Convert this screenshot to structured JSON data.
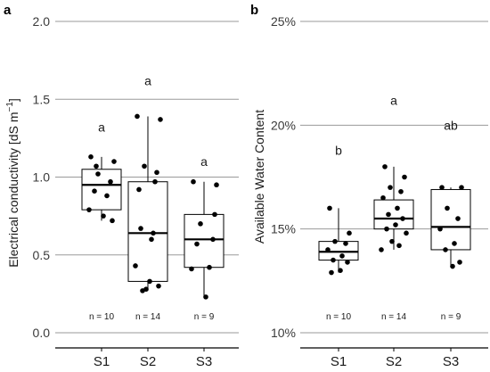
{
  "chart_data": [
    {
      "type": "box",
      "panel": "a",
      "title": "",
      "ylabel": "Electrical conductivity [dS m",
      "ylabel_sup": "−1",
      "ylabel_end": "]",
      "ylim": [
        0.0,
        2.0
      ],
      "yticks": [
        0.0,
        0.5,
        1.0,
        1.5,
        2.0
      ],
      "ytick_labels": [
        "0.0",
        "0.5",
        "1.0",
        "1.5",
        "2.0"
      ],
      "grid": true,
      "categories": [
        "S1",
        "S2",
        "S3"
      ],
      "boxes": [
        {
          "q1": 0.79,
          "median": 0.95,
          "q3": 1.05,
          "whisker_low": 0.72,
          "whisker_high": 1.13
        },
        {
          "q1": 0.33,
          "median": 0.64,
          "q3": 0.97,
          "whisker_low": 0.27,
          "whisker_high": 1.39
        },
        {
          "q1": 0.42,
          "median": 0.6,
          "q3": 0.76,
          "whisker_low": 0.23,
          "whisker_high": 0.97
        }
      ],
      "points": [
        [
          1.13,
          1.1,
          1.02,
          0.97,
          0.91,
          0.88,
          0.79,
          0.75,
          0.72,
          1.07
        ],
        [
          1.39,
          1.37,
          1.07,
          1.03,
          0.67,
          0.64,
          0.43,
          0.33,
          0.3,
          0.27,
          0.97,
          0.92,
          0.6,
          0.28
        ],
        [
          0.97,
          0.95,
          0.7,
          0.6,
          0.57,
          0.42,
          0.41,
          0.23,
          0.76
        ]
      ],
      "letters": [
        "a",
        "a",
        "a"
      ],
      "letter_y": [
        1.32,
        1.62,
        1.1
      ],
      "n_labels": [
        "n = 10",
        "n = 14",
        "n = 9"
      ]
    },
    {
      "type": "box",
      "panel": "b",
      "title": "",
      "ylabel": "Available Water Content",
      "ylim": [
        0.1,
        0.25
      ],
      "yticks": [
        0.1,
        0.15,
        0.2,
        0.25
      ],
      "ytick_labels": [
        "10%",
        "15%",
        "20%",
        "25%"
      ],
      "grid": true,
      "categories": [
        "S1",
        "S2",
        "S3"
      ],
      "boxes": [
        {
          "q1": 0.135,
          "median": 0.139,
          "q3": 0.144,
          "whisker_low": 0.129,
          "whisker_high": 0.16
        },
        {
          "q1": 0.15,
          "median": 0.155,
          "q3": 0.164,
          "whisker_low": 0.14,
          "whisker_high": 0.18
        },
        {
          "q1": 0.14,
          "median": 0.151,
          "q3": 0.169,
          "whisker_low": 0.132,
          "whisker_high": 0.17
        }
      ],
      "points": [
        [
          0.16,
          0.148,
          0.144,
          0.143,
          0.14,
          0.137,
          0.135,
          0.134,
          0.13,
          0.129
        ],
        [
          0.18,
          0.175,
          0.17,
          0.168,
          0.165,
          0.16,
          0.157,
          0.155,
          0.152,
          0.15,
          0.148,
          0.144,
          0.142,
          0.14
        ],
        [
          0.17,
          0.17,
          0.16,
          0.155,
          0.15,
          0.143,
          0.14,
          0.134,
          0.132
        ]
      ],
      "letters": [
        "b",
        "a",
        "ab"
      ],
      "letter_y": [
        0.188,
        0.212,
        0.2
      ],
      "n_labels": [
        "n = 10",
        "n = 14",
        "n = 9"
      ]
    }
  ]
}
